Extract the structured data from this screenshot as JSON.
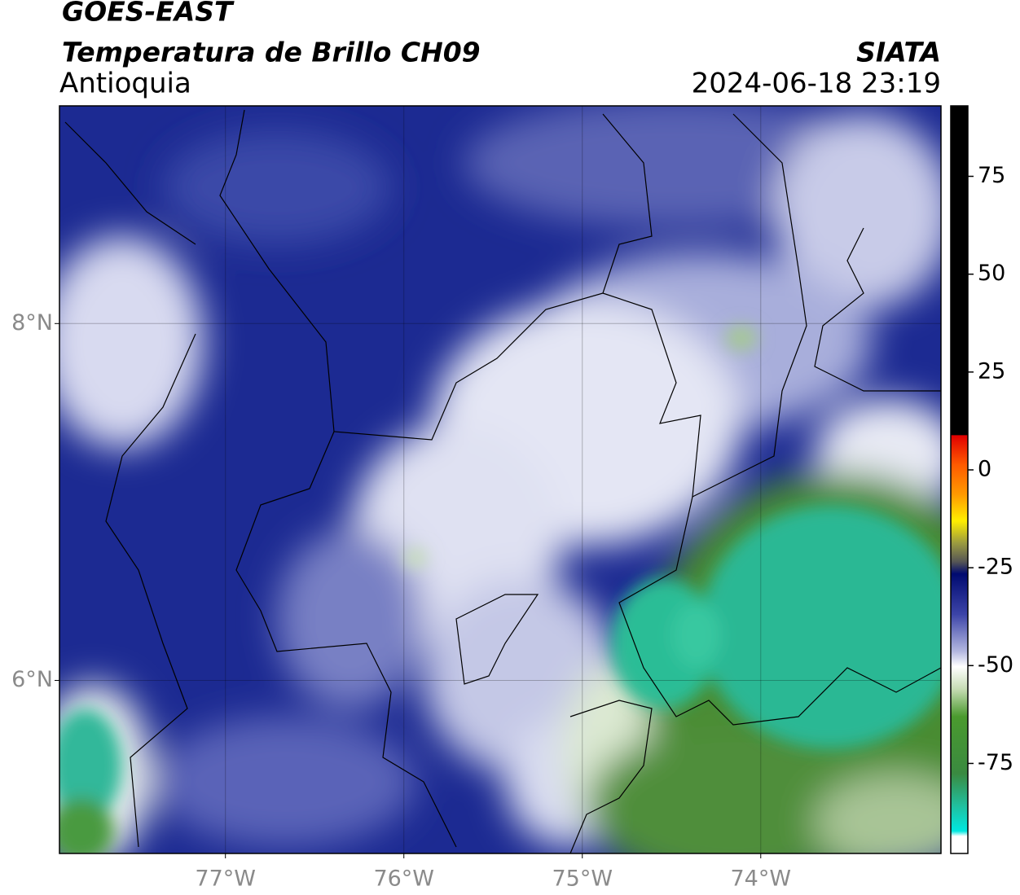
{
  "header": {
    "title": "GOES-EAST",
    "subtitle": "Temperatura de Brillo CH09",
    "region": "Antioquia",
    "source": "SIATA",
    "timestamp": "2024-06-18 23:19"
  },
  "map": {
    "xlim": [
      -77.93,
      -72.99
    ],
    "ylim": [
      5.03,
      9.22
    ],
    "xticks": [
      {
        "value": -77,
        "label": "77°W"
      },
      {
        "value": -76,
        "label": "76°W"
      },
      {
        "value": -75,
        "label": "75°W"
      },
      {
        "value": -74,
        "label": "74°W"
      }
    ],
    "yticks": [
      {
        "value": 6,
        "label": "6°N"
      },
      {
        "value": 8,
        "label": "8°N"
      }
    ],
    "grid": true
  },
  "colorbar": {
    "lim": [
      -98,
      93
    ],
    "ticks": [
      75,
      50,
      25,
      0,
      -25,
      -50,
      -75
    ]
  }
}
